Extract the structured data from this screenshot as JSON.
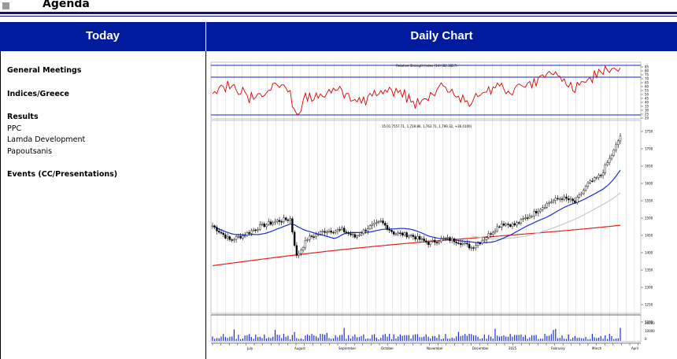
{
  "header": {
    "title": "Agenda"
  },
  "columns": {
    "left": "Today",
    "right": "Daily Chart"
  },
  "agenda": [
    {
      "heading": "General Meetings",
      "items": []
    },
    {
      "heading": "Indices/Greece",
      "items": []
    },
    {
      "heading": "Results",
      "items": [
        "PPC",
        "Lamda Development",
        "Papoutsanis"
      ]
    },
    {
      "heading": "Events (CC/Presentations)",
      "items": []
    }
  ],
  "chart_data": {
    "type": "line",
    "rsi_panel": {
      "label": "Relative Strength Index (14) (82.3827)",
      "reference_lines": [
        30,
        70,
        85
      ],
      "tick_labels": [
        "85",
        "80",
        "75",
        "70",
        "65",
        "60",
        "55",
        "50",
        "45",
        "40",
        "35",
        "30",
        "25",
        "20"
      ]
    },
    "price_panel": {
      "ohlc_label": "15.01.7557.71, 1,728.86, 1,763.71, 1,799.32, +36.4100)",
      "y_tick_labels": [
        "1750",
        "1700",
        "1650",
        "1600",
        "1550",
        "1500",
        "1450",
        "1400",
        "1350",
        "1300",
        "1250",
        "1200"
      ],
      "ylim": [
        1180,
        1790
      ]
    },
    "volume_panel": {
      "tick_labels": [
        "20000",
        "10000",
        "0"
      ]
    },
    "x_month_labels": [
      "July",
      "August",
      "September",
      "October",
      "November",
      "December",
      "2025",
      "February",
      "March",
      "April"
    ],
    "colors": {
      "rsi": "#dd0000",
      "ma_short": "#1b2fd8",
      "ma_mid": "#c8c8c8",
      "ma_long": "#e02020",
      "ref_lines": "#1a22c8"
    }
  }
}
